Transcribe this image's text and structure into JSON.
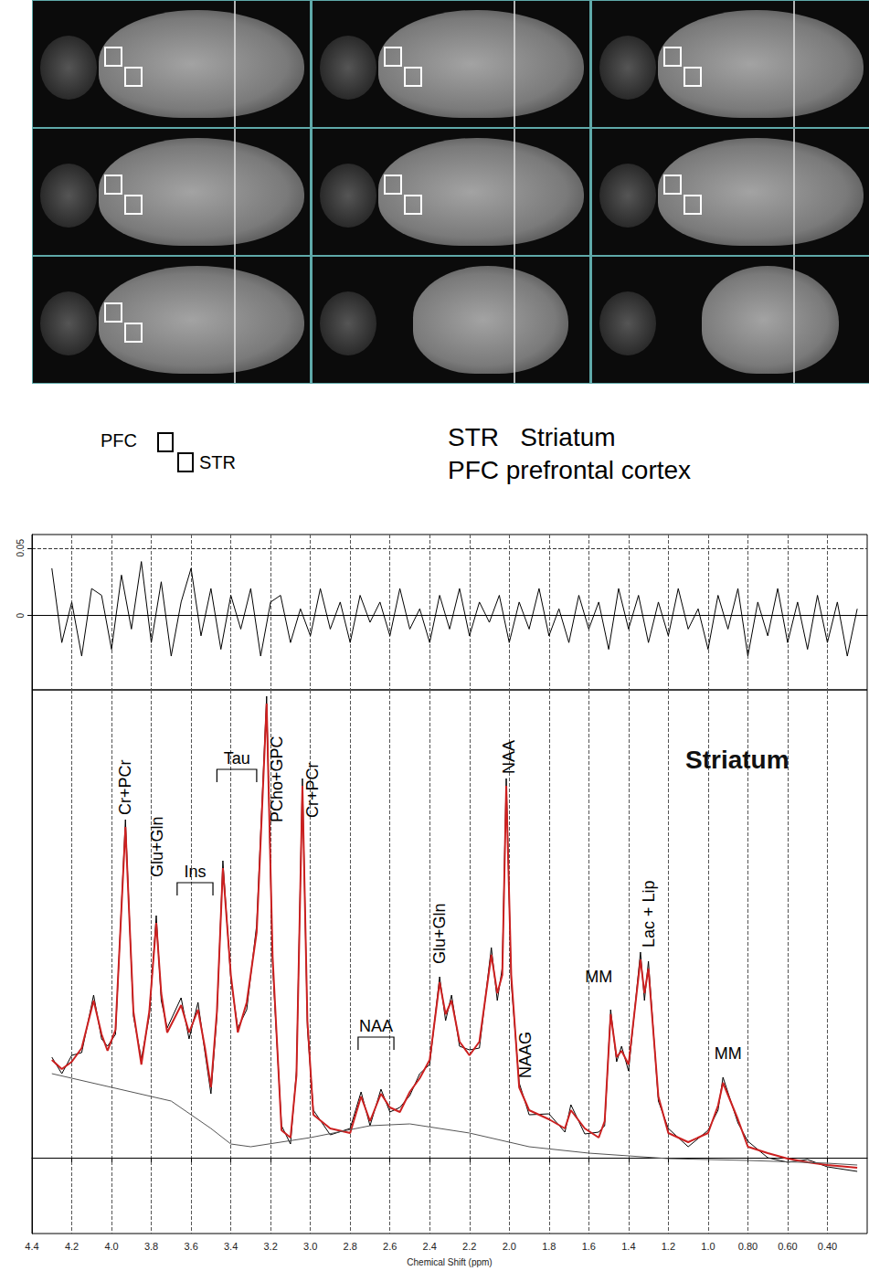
{
  "figure": {
    "roi_key": {
      "pfc": "PFC",
      "str": "STR"
    },
    "abbreviations": [
      "STR   Striatum",
      "PFC prefrontal cortex"
    ]
  },
  "chart_data": [
    {
      "type": "line",
      "grid": true,
      "tick_labels": "y",
      "xlim": [
        4.4,
        0.2
      ],
      "xticks": [
        4.4,
        4.2,
        {
          "value": 4,
          "label": "4.0"
        },
        3.8,
        3.6,
        3.4,
        3.2,
        {
          "value": 3,
          "label": "3.0"
        },
        2.8,
        2.6,
        2.4,
        2.2,
        {
          "value": 2,
          "label": "2.0"
        },
        1.8,
        1.6,
        1.4,
        1.2,
        {
          "value": 1,
          "label": "1.0"
        },
        {
          "value": 0.8,
          "label": "0.80"
        },
        {
          "value": 0.6,
          "label": "0.60"
        },
        {
          "value": 0.4,
          "label": "0.40"
        }
      ],
      "ylim": [
        -0.055,
        0.06
      ],
      "yticks": [
        0,
        0.05
      ],
      "series": [
        {
          "color": "#000000",
          "line_style": "solid",
          "x": [
            4.3,
            4.25,
            4.2,
            4.15,
            4.1,
            4.05,
            4.0,
            3.95,
            3.9,
            3.85,
            3.8,
            3.75,
            3.7,
            3.65,
            3.6,
            3.55,
            3.5,
            3.45,
            3.4,
            3.35,
            3.3,
            3.25,
            3.2,
            3.15,
            3.1,
            3.05,
            3.0,
            2.95,
            2.9,
            2.85,
            2.8,
            2.75,
            2.7,
            2.65,
            2.6,
            2.55,
            2.5,
            2.45,
            2.4,
            2.35,
            2.3,
            2.25,
            2.2,
            2.15,
            2.1,
            2.05,
            2.0,
            1.95,
            1.9,
            1.85,
            1.8,
            1.75,
            1.7,
            1.65,
            1.6,
            1.55,
            1.5,
            1.45,
            1.4,
            1.35,
            1.3,
            1.25,
            1.2,
            1.15,
            1.1,
            1.05,
            1.0,
            0.95,
            0.9,
            0.85,
            0.8,
            0.75,
            0.7,
            0.65,
            0.6,
            0.55,
            0.5,
            0.45,
            0.4,
            0.35,
            0.3,
            0.25
          ],
          "values": [
            0.035,
            -0.02,
            0.01,
            -0.03,
            0.02,
            0.015,
            -0.025,
            0.03,
            -0.01,
            0.04,
            -0.02,
            0.025,
            -0.03,
            0.01,
            0.035,
            -0.015,
            0.02,
            -0.025,
            0.015,
            -0.01,
            0.02,
            -0.03,
            0.01,
            0.015,
            -0.02,
            0.005,
            -0.015,
            0.02,
            -0.01,
            0.01,
            -0.02,
            0.015,
            -0.005,
            0.01,
            -0.015,
            0.02,
            -0.01,
            0.005,
            -0.02,
            0.015,
            -0.01,
            0.02,
            -0.015,
            0.01,
            -0.005,
            0.015,
            -0.02,
            0.01,
            -0.01,
            0.02,
            -0.015,
            0.005,
            -0.02,
            0.015,
            -0.01,
            0.01,
            -0.025,
            0.02,
            -0.01,
            0.015,
            -0.02,
            0.01,
            -0.015,
            0.02,
            -0.01,
            0.005,
            -0.025,
            0.015,
            -0.01,
            0.02,
            -0.03,
            0.01,
            -0.015,
            0.02,
            -0.02,
            0.01,
            -0.025,
            0.015,
            -0.02,
            0.01,
            -0.03,
            0.005
          ]
        }
      ]
    },
    {
      "type": "line",
      "title": "Striatum",
      "x_label": "Chemical Shift (ppm)",
      "grid": true,
      "tick_labels": "x",
      "xlim": [
        4.4,
        0.2
      ],
      "xticks": [
        4.4,
        4.2,
        {
          "value": 4,
          "label": "4.0"
        },
        3.8,
        3.6,
        3.4,
        3.2,
        {
          "value": 3,
          "label": "3.0"
        },
        2.8,
        2.6,
        2.4,
        2.2,
        {
          "value": 2,
          "label": "2.0"
        },
        1.8,
        1.6,
        1.4,
        1.2,
        {
          "value": 1,
          "label": "1.0"
        },
        {
          "value": 0.8,
          "label": "0.80"
        },
        {
          "value": 0.6,
          "label": "0.60"
        },
        {
          "value": 0.4,
          "label": "0.40"
        }
      ],
      "ylim": [
        -0.83,
        5.12
      ],
      "yticks": [
        0
      ],
      "series": [
        {
          "color": "#000000",
          "line_style": "solid",
          "x": [
            4.3,
            4.25,
            4.2,
            4.15,
            4.09,
            4.05,
            4.02,
            3.98,
            3.93,
            3.89,
            3.85,
            3.81,
            3.775,
            3.75,
            3.72,
            3.65,
            3.61,
            3.565,
            3.53,
            3.5,
            3.47,
            3.44,
            3.4,
            3.365,
            3.32,
            3.27,
            3.22,
            3.19,
            3.145,
            3.1,
            3.07,
            3.04,
            3.015,
            2.985,
            2.9,
            2.8,
            2.745,
            2.7,
            2.645,
            2.6,
            2.55,
            2.5,
            2.45,
            2.4,
            2.35,
            2.32,
            2.29,
            2.25,
            2.2,
            2.15,
            2.09,
            2.06,
            2.035,
            2.015,
            1.99,
            1.95,
            1.9,
            1.8,
            1.72,
            1.69,
            1.62,
            1.55,
            1.52,
            1.49,
            1.46,
            1.435,
            1.4,
            1.34,
            1.32,
            1.3,
            1.25,
            1.2,
            1.1,
            1.0,
            0.95,
            0.925,
            0.85,
            0.8,
            0.7,
            0.6,
            0.5,
            0.4,
            0.25
          ],
          "values": [
            1.1,
            0.92,
            1.12,
            1.15,
            1.78,
            1.3,
            1.22,
            1.35,
            3.7,
            1.55,
            1.08,
            1.55,
            2.65,
            1.72,
            1.42,
            1.75,
            1.3,
            1.7,
            1.15,
            0.7,
            1.55,
            3.25,
            1.95,
            1.42,
            1.62,
            2.55,
            5.05,
            2.1,
            0.35,
            0.15,
            0.95,
            4.15,
            1.42,
            0.52,
            0.25,
            0.32,
            0.72,
            0.35,
            0.75,
            0.5,
            0.55,
            0.68,
            0.92,
            1.02,
            1.98,
            1.5,
            1.78,
            1.22,
            1.18,
            1.2,
            2.3,
            1.72,
            2.08,
            4.15,
            1.92,
            0.82,
            0.47,
            0.48,
            0.28,
            0.58,
            0.26,
            0.28,
            0.35,
            1.62,
            1.05,
            1.22,
            0.95,
            2.25,
            1.72,
            2.15,
            0.62,
            0.32,
            0.12,
            0.3,
            0.52,
            0.88,
            0.38,
            0.18,
            0.0,
            -0.05,
            -0.02,
            -0.1,
            -0.15
          ]
        },
        {
          "color": "#cc2020",
          "line_style": "solid",
          "x": [
            4.3,
            4.25,
            4.2,
            4.15,
            4.09,
            4.05,
            4.02,
            3.98,
            3.93,
            3.89,
            3.85,
            3.81,
            3.775,
            3.75,
            3.72,
            3.65,
            3.61,
            3.565,
            3.53,
            3.5,
            3.47,
            3.44,
            3.4,
            3.365,
            3.32,
            3.27,
            3.22,
            3.19,
            3.145,
            3.1,
            3.07,
            3.04,
            3.015,
            2.985,
            2.9,
            2.8,
            2.745,
            2.7,
            2.645,
            2.6,
            2.55,
            2.5,
            2.45,
            2.4,
            2.35,
            2.32,
            2.29,
            2.25,
            2.2,
            2.15,
            2.09,
            2.06,
            2.035,
            2.015,
            1.99,
            1.95,
            1.9,
            1.8,
            1.72,
            1.69,
            1.62,
            1.55,
            1.52,
            1.49,
            1.46,
            1.435,
            1.4,
            1.34,
            1.32,
            1.3,
            1.25,
            1.2,
            1.1,
            1.0,
            0.95,
            0.925,
            0.85,
            0.8,
            0.7,
            0.6,
            0.5,
            0.4,
            0.25
          ],
          "values": [
            1.07,
            0.97,
            1.05,
            1.2,
            1.72,
            1.35,
            1.17,
            1.4,
            3.62,
            1.6,
            1.02,
            1.6,
            2.57,
            1.8,
            1.37,
            1.67,
            1.37,
            1.62,
            1.2,
            0.77,
            1.6,
            3.17,
            2.0,
            1.37,
            1.7,
            2.47,
            4.97,
            2.2,
            0.3,
            0.22,
            0.9,
            4.07,
            1.5,
            0.47,
            0.32,
            0.27,
            0.67,
            0.4,
            0.7,
            0.55,
            0.5,
            0.72,
            0.87,
            1.07,
            1.92,
            1.57,
            1.72,
            1.27,
            1.12,
            1.27,
            2.22,
            1.8,
            2.0,
            4.07,
            2.0,
            0.77,
            0.52,
            0.42,
            0.32,
            0.52,
            0.32,
            0.22,
            0.4,
            1.57,
            1.1,
            1.17,
            1.02,
            2.17,
            1.8,
            2.07,
            0.67,
            0.27,
            0.17,
            0.27,
            0.57,
            0.82,
            0.42,
            0.12,
            0.05,
            -0.01,
            -0.05,
            -0.08,
            -0.11
          ]
        },
        {
          "color": "#555555",
          "line_style": "solid",
          "x": [
            4.3,
            4.0,
            3.7,
            3.5,
            3.4,
            3.3,
            3.0,
            2.7,
            2.5,
            2.2,
            1.9,
            1.6,
            1.2,
            0.8,
            0.4,
            0.25
          ],
          "values": [
            0.92,
            0.77,
            0.62,
            0.32,
            0.15,
            0.12,
            0.22,
            0.35,
            0.37,
            0.27,
            0.12,
            0.05,
            -0.01,
            -0.03,
            -0.06,
            -0.08
          ]
        }
      ],
      "vertical_annotations": [
        {
          "text": "Cr+PCr",
          "x": 3.93,
          "y": 3.75
        },
        {
          "text": "Glu+Gln",
          "x": 3.77,
          "y": 3.07
        },
        {
          "text": "PCho+GPC",
          "x": 3.17,
          "y": 3.67
        },
        {
          "text": "Cr+PCr",
          "x": 2.99,
          "y": 3.72
        },
        {
          "text": "Glu+Gln",
          "x": 2.35,
          "y": 2.12
        },
        {
          "text": "NAA",
          "x": 2.0,
          "y": 4.2
        },
        {
          "text": "NAAG",
          "x": 1.92,
          "y": 0.87
        },
        {
          "text": "Lac + Lip",
          "x": 1.3,
          "y": 2.3
        }
      ],
      "annotations": [
        {
          "text": "MM",
          "x": 1.55,
          "y": 1.89
        },
        {
          "text": "MM",
          "x": 0.9,
          "y": 1.05
        }
      ],
      "brackets": [
        {
          "label": "Ins",
          "x": [
            3.67,
            3.49
          ],
          "y": 3.01
        },
        {
          "label": "Tau",
          "x": [
            3.47,
            3.27
          ],
          "y": 4.25
        },
        {
          "label": "NAA",
          "x": [
            2.76,
            2.58
          ],
          "y": 1.32
        }
      ]
    }
  ]
}
